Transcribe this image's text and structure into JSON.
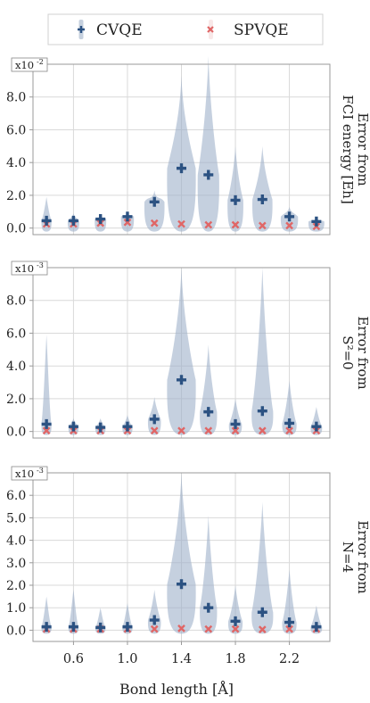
{
  "colors": {
    "cvqe": "#2c5282",
    "violin": "#9fb1ca",
    "spvqe": "#e06666",
    "grid": "#d9d9d9",
    "axis": "#9a9a9a"
  },
  "legend": {
    "cvqe_label": "CVQE",
    "spvqe_label": "SPVQE"
  },
  "xaxis": {
    "label": "Bond length [Å]",
    "ticks": [
      "0.6",
      "1.0",
      "1.4",
      "1.8",
      "2.2"
    ],
    "tick_values": [
      0.6,
      1.0,
      1.4,
      1.8,
      2.2
    ],
    "range": [
      0.3,
      2.5
    ]
  },
  "chart_data": [
    {
      "type": "violin",
      "multiplier": "x10",
      "exponent": "-2",
      "ylabel": [
        "Error from",
        "FCI energy [Eh]"
      ],
      "ylim": [
        -0.4,
        10.0
      ],
      "yticks": [
        "0.0",
        "2.0",
        "4.0",
        "6.0",
        "8.0"
      ],
      "ytick_values": [
        0,
        2,
        4,
        6,
        8
      ],
      "x": [
        0.4,
        0.6,
        0.8,
        1.0,
        1.2,
        1.4,
        1.6,
        1.8,
        2.0,
        2.2,
        2.4
      ],
      "cvqe_mean": [
        0.45,
        0.45,
        0.55,
        0.7,
        1.6,
        3.65,
        3.25,
        1.7,
        1.75,
        0.7,
        0.4
      ],
      "spvqe_mean": [
        0.25,
        0.25,
        0.3,
        0.35,
        0.3,
        0.25,
        0.2,
        0.2,
        0.15,
        0.15,
        0.1
      ],
      "violin_max": [
        1.9,
        0.9,
        0.8,
        0.9,
        2.3,
        9.3,
        10.5,
        5.0,
        5.0,
        1.3,
        0.6
      ],
      "violin_width": [
        0.35,
        0.4,
        0.4,
        0.45,
        0.7,
        1.0,
        0.75,
        0.55,
        0.7,
        0.6,
        0.55
      ]
    },
    {
      "type": "violin",
      "multiplier": "x10",
      "exponent": "-3",
      "ylabel": [
        "Error from",
        "S²=0"
      ],
      "ylim": [
        -0.4,
        10.0
      ],
      "yticks": [
        "0.0",
        "2.0",
        "4.0",
        "6.0",
        "8.0"
      ],
      "ytick_values": [
        0,
        2,
        4,
        6,
        8
      ],
      "x": [
        0.4,
        0.6,
        0.8,
        1.0,
        1.2,
        1.4,
        1.6,
        1.8,
        2.0,
        2.2,
        2.4
      ],
      "cvqe_mean": [
        0.45,
        0.3,
        0.25,
        0.3,
        0.75,
        3.15,
        1.2,
        0.45,
        1.25,
        0.5,
        0.3
      ],
      "spvqe_mean": [
        0.05,
        0.05,
        0.05,
        0.05,
        0.05,
        0.05,
        0.05,
        0.05,
        0.05,
        0.05,
        0.05
      ],
      "violin_max": [
        5.9,
        0.8,
        0.8,
        1.0,
        2.1,
        10.0,
        5.3,
        2.0,
        10.0,
        3.1,
        1.5
      ],
      "violin_width": [
        0.35,
        0.35,
        0.35,
        0.35,
        0.45,
        1.0,
        0.6,
        0.45,
        0.75,
        0.5,
        0.4
      ]
    },
    {
      "type": "violin",
      "multiplier": "x10",
      "exponent": "-3",
      "ylabel": [
        "Error from",
        "N=4"
      ],
      "ylim": [
        -0.5,
        7.0
      ],
      "yticks": [
        "0.0",
        "1.0",
        "2.0",
        "3.0",
        "4.0",
        "5.0",
        "6.0"
      ],
      "ytick_values": [
        0,
        1,
        2,
        3,
        4,
        5,
        6
      ],
      "x": [
        0.4,
        0.6,
        0.8,
        1.0,
        1.2,
        1.4,
        1.6,
        1.8,
        2.0,
        2.2,
        2.4
      ],
      "cvqe_mean": [
        0.15,
        0.15,
        0.12,
        0.15,
        0.45,
        2.05,
        1.0,
        0.4,
        0.8,
        0.35,
        0.15
      ],
      "spvqe_mean": [
        0.05,
        0.05,
        0.05,
        0.05,
        0.05,
        0.08,
        0.05,
        0.05,
        0.03,
        0.05,
        0.05
      ],
      "violin_max": [
        1.5,
        1.8,
        1.0,
        1.2,
        1.8,
        7.0,
        5.1,
        2.0,
        5.7,
        2.7,
        1.1
      ],
      "violin_width": [
        0.35,
        0.35,
        0.35,
        0.35,
        0.45,
        1.0,
        0.6,
        0.5,
        0.75,
        0.5,
        0.4
      ]
    }
  ]
}
